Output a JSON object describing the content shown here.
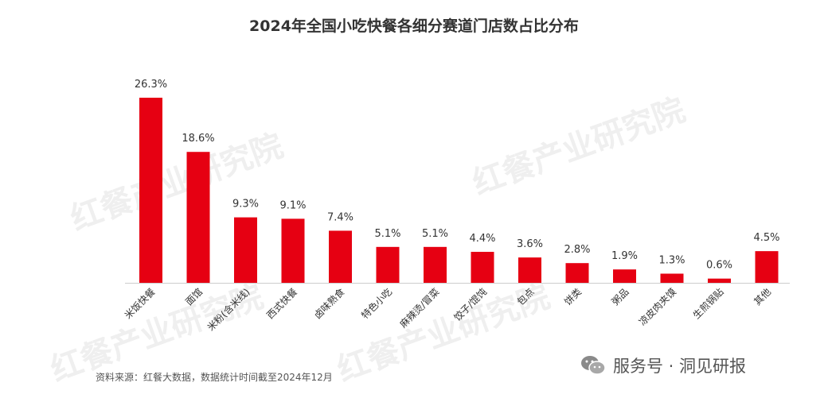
{
  "page_title": "2024年全国小吃快餐各细分赛道门店数占比分布",
  "source_note": "资料来源：红餐大数据，数据统计时间截至2024年12月",
  "watermark_text": "红餐产业研究院",
  "badge": {
    "icon": "wechat-icon",
    "text": "服务号 · 洞见研报"
  },
  "chart_data": {
    "type": "bar",
    "title": "2024年全国小吃快餐各细分赛道门店数占比分布",
    "categories": [
      "米饭快餐",
      "面馆",
      "米粉(含米线)",
      "西式快餐",
      "卤味熟食",
      "特色小吃",
      "麻辣烫/冒菜",
      "饺子/馄饨",
      "包点",
      "饼类",
      "粥品",
      "凉皮肉夹馍",
      "生煎锅贴",
      "其他"
    ],
    "values": [
      26.3,
      18.6,
      9.3,
      9.1,
      7.4,
      5.1,
      5.1,
      4.4,
      3.6,
      2.8,
      1.9,
      1.3,
      0.6,
      4.5
    ],
    "data_labels": [
      "26.3%",
      "18.6%",
      "9.3%",
      "9.1%",
      "7.4%",
      "5.1%",
      "5.1%",
      "4.4%",
      "3.6%",
      "2.8%",
      "1.9%",
      "1.3%",
      "0.6%",
      "4.5%"
    ],
    "unit": "%",
    "xlabel": "",
    "ylabel": "",
    "ylim": [
      0,
      26.3
    ],
    "grid": false,
    "legend": "none",
    "bar_color": "#e60012"
  }
}
